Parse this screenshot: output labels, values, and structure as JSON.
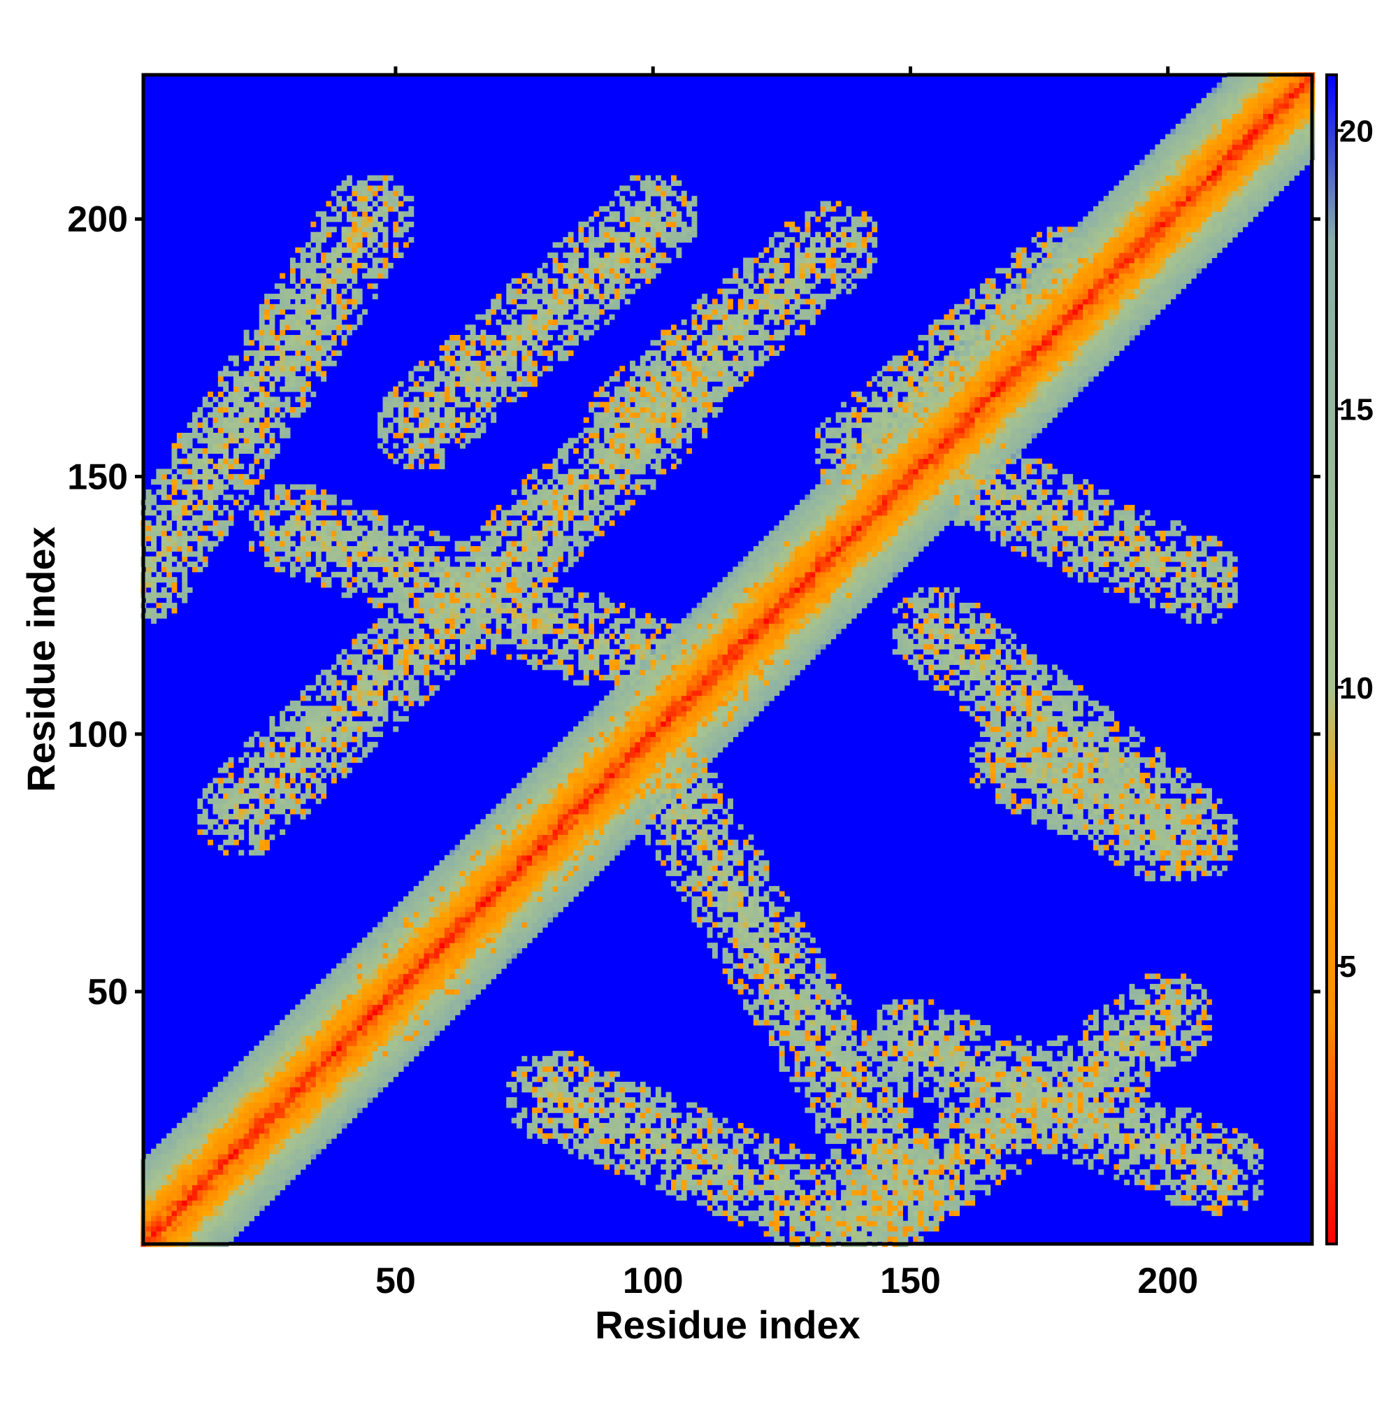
{
  "chart_data": {
    "type": "heatmap",
    "title": "",
    "xlabel": "Residue index",
    "ylabel": "Residue index",
    "xlim": [
      1,
      228
    ],
    "ylim": [
      1,
      228
    ],
    "xticks": [
      50,
      100,
      150,
      200
    ],
    "yticks": [
      50,
      100,
      150,
      200
    ],
    "grid": false,
    "colorbar": {
      "range": [
        0,
        21
      ],
      "ticks": [
        5,
        10,
        15,
        20
      ],
      "colors": [
        "#ff0000",
        "#ff8c00",
        "#ffa500",
        "#a7c38f",
        "#8ab0a8",
        "#0000ff"
      ],
      "stops": [
        0,
        4,
        8,
        10,
        18,
        21
      ]
    },
    "description_values": {
      "background": 21,
      "diagonal": 0
    },
    "pattern": {
      "diagonal_band_width": 12,
      "off_diagonal_band_width": 9,
      "bands": [
        {
          "from": [
            1,
            130
          ],
          "to": [
            45,
            200
          ]
        },
        {
          "from": [
            20,
            85
          ],
          "to": [
            105,
            165
          ]
        },
        {
          "from": [
            45,
            45
          ],
          "to": [
            130,
            130
          ]
        },
        {
          "from": [
            80,
            30
          ],
          "to": [
            140,
            5
          ]
        },
        {
          "from": [
            140,
            5
          ],
          "to": [
            200,
            45
          ]
        },
        {
          "from": [
            100,
            95
          ],
          "to": [
            150,
            10
          ]
        },
        {
          "from": [
            55,
            160
          ],
          "to": [
            100,
            200
          ]
        },
        {
          "from": [
            95,
            160
          ],
          "to": [
            135,
            195
          ]
        },
        {
          "from": [
            140,
            155
          ],
          "to": [
            180,
            190
          ]
        },
        {
          "from": [
            155,
            120
          ],
          "to": [
            205,
            80
          ]
        },
        {
          "from": [
            170,
            95
          ],
          "to": [
            200,
            80
          ]
        },
        {
          "from": [
            150,
            40
          ],
          "to": [
            210,
            15
          ]
        },
        {
          "from": [
            160,
            150
          ],
          "to": [
            205,
            130
          ]
        },
        {
          "from": [
            30,
            140
          ],
          "to": [
            110,
            110
          ]
        }
      ]
    }
  }
}
